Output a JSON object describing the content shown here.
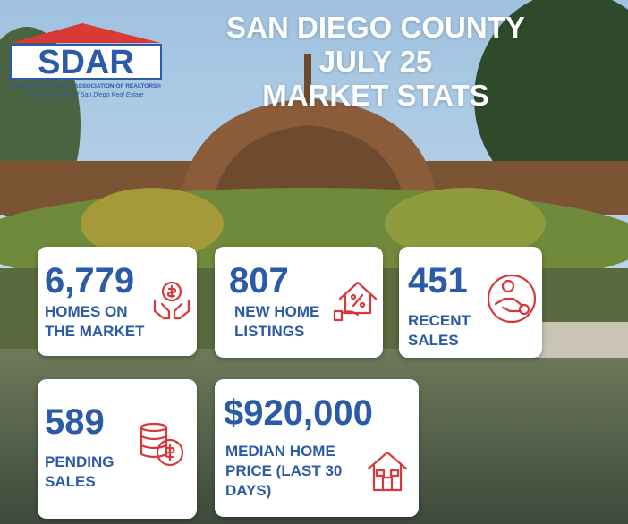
{
  "logo": {
    "name": "SDAR",
    "org": "GREATER SAN DIEGO ASSOCIATION OF REALTORS®",
    "tagline": "A Trusted Voice of San Diego Real Estate"
  },
  "header": {
    "title_lines": [
      "SAN DIEGO COUNTY",
      "JULY 25",
      "MARKET STATS"
    ]
  },
  "stats": [
    {
      "value": "6,779",
      "label_lines": [
        "HOMES ON",
        "THE MARKET"
      ]
    },
    {
      "value": "807",
      "label_lines": [
        "NEW HOME",
        "LISTINGS"
      ]
    },
    {
      "value": "451",
      "label_lines": [
        "RECENT",
        "SALES"
      ]
    },
    {
      "value": "589",
      "label_lines": [
        "PENDING",
        "SALES"
      ]
    },
    {
      "value": "$920,000",
      "label_lines": [
        "MEDIAN HOME",
        "PRICE (LAST 30",
        "DAYS)"
      ]
    }
  ]
}
